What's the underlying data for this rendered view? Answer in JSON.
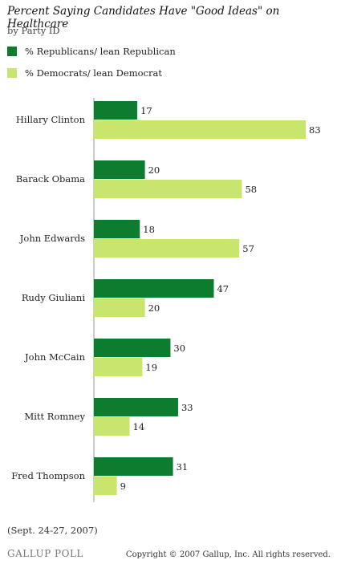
{
  "header": {
    "title": "Percent Saying Candidates Have \"Good Ideas\" on Healthcare",
    "subtitle": "by Party ID"
  },
  "legend": {
    "items": [
      {
        "label": "% Republicans/ lean Republican",
        "color": "#0e7c2e"
      },
      {
        "label": "% Democrats/ lean Democrat",
        "color": "#c8e66e"
      }
    ]
  },
  "chart_data": {
    "type": "bar",
    "orientation": "horizontal",
    "categories": [
      "Hillary Clinton",
      "Barack Obama",
      "John Edwards",
      "Rudy Giuliani",
      "John McCain",
      "Mitt Romney",
      "Fred Thompson"
    ],
    "series": [
      {
        "name": "% Republicans/ lean Republican",
        "color": "#0e7c2e",
        "values": [
          17,
          20,
          18,
          47,
          30,
          33,
          31
        ]
      },
      {
        "name": "% Democrats/ lean Democrat",
        "color": "#c8e66e",
        "values": [
          83,
          58,
          57,
          20,
          19,
          14,
          9
        ]
      }
    ],
    "xlim": [
      0,
      83
    ],
    "grid": false,
    "legend_position": "top-left",
    "data_labels": true
  },
  "footer": {
    "note": "(Sept. 24-27, 2007)",
    "brand": "GALLUP POLL",
    "copyright": "Copyright © 2007 Gallup, Inc. All rights reserved."
  }
}
